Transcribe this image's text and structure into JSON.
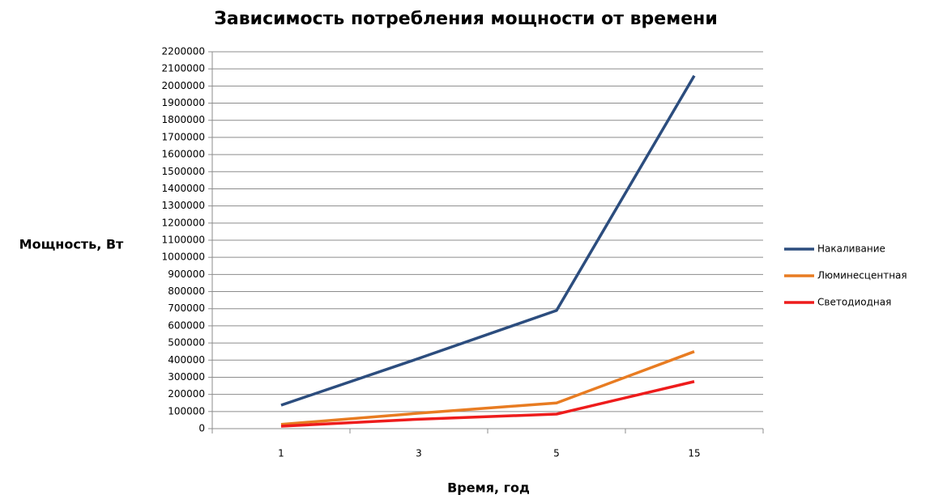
{
  "chart_data": {
    "type": "line",
    "title": "Зависимость потребления мощности от времени",
    "xlabel": "Время, год",
    "ylabel": "Мощность, Вт",
    "categories": [
      "1",
      "3",
      "5",
      "15"
    ],
    "series": [
      {
        "name": "Накаливание",
        "color": "#2c4d7e",
        "values": [
          137000,
          410000,
          690000,
          2060000
        ]
      },
      {
        "name": "Люминесцентная",
        "color": "#e87c22",
        "values": [
          25000,
          90000,
          150000,
          450000
        ]
      },
      {
        "name": "Светодиодная",
        "color": "#ee1c1c",
        "values": [
          14000,
          55000,
          85000,
          275000
        ]
      }
    ],
    "ylim": [
      0,
      2200000
    ],
    "yticks": [
      0,
      100000,
      200000,
      300000,
      400000,
      500000,
      600000,
      700000,
      800000,
      900000,
      1000000,
      1100000,
      1200000,
      1300000,
      1400000,
      1500000,
      1600000,
      1700000,
      1800000,
      1900000,
      2000000,
      2100000,
      2200000
    ],
    "grid": true,
    "legend": "right"
  }
}
